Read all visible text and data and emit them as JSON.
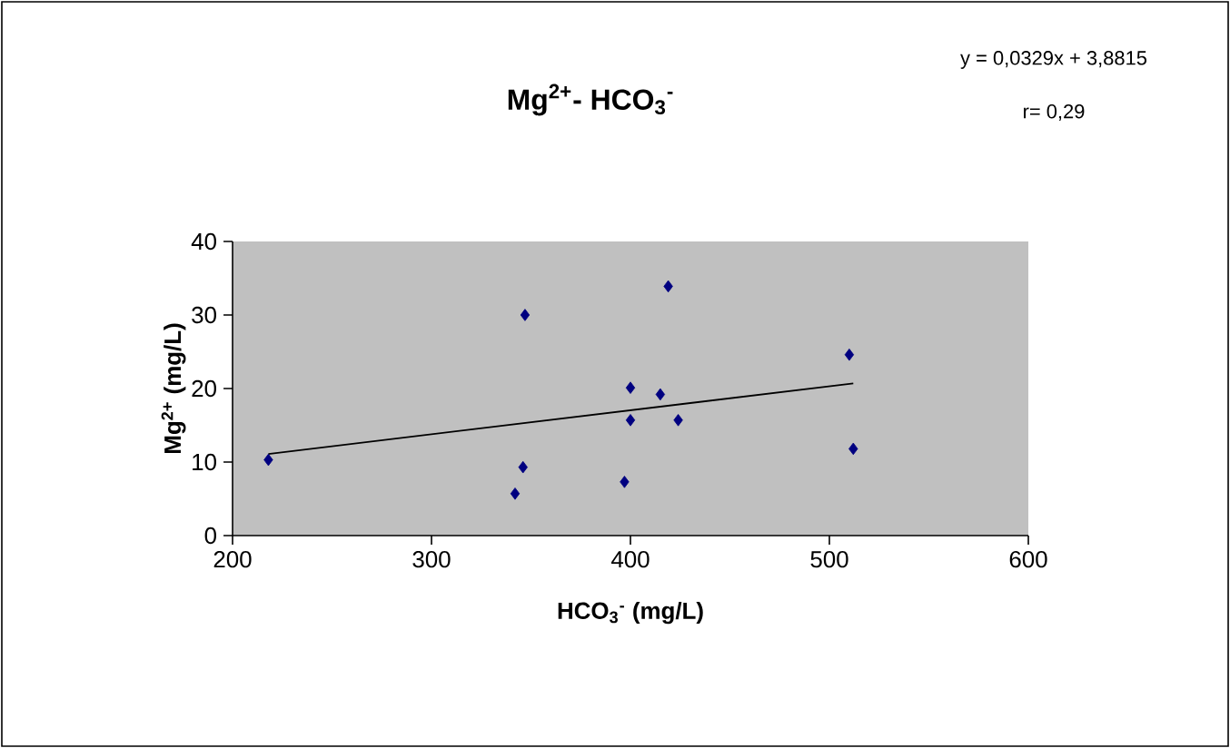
{
  "chart_data": {
    "type": "scatter",
    "title": "**Mg$^{2+}$- HCO$_{3}$$^{-}$**",
    "xlabel": "**HCO$_{3}$$^{-}$ (mg/L)**",
    "ylabel": "**Mg$^{2+}$ (mg/L)**",
    "annotations": [
      "y = 0,0329x + 3,8815",
      "r= 0,29"
    ],
    "series": [
      {
        "color": "#000080",
        "marker": "diamond",
        "x": [
          218,
          347,
          346,
          342,
          400,
          400,
          397,
          415,
          419,
          424,
          510,
          512
        ],
        "values": [
          10.3,
          30,
          9.3,
          5.7,
          20.1,
          15.7,
          7.3,
          19.2,
          33.9,
          15.7,
          24.6,
          11.8
        ]
      },
      {
        "type": "line",
        "color": "#000000",
        "marker": "none",
        "x": [
          218,
          512
        ],
        "values": [
          11.1,
          20.7
        ]
      }
    ],
    "xlim": [
      200,
      600
    ],
    "xticks": [
      200,
      300,
      400,
      500,
      600
    ],
    "ylim": [
      0,
      40
    ],
    "yticks": [
      0,
      10,
      20,
      30,
      40
    ],
    "grid": false
  }
}
